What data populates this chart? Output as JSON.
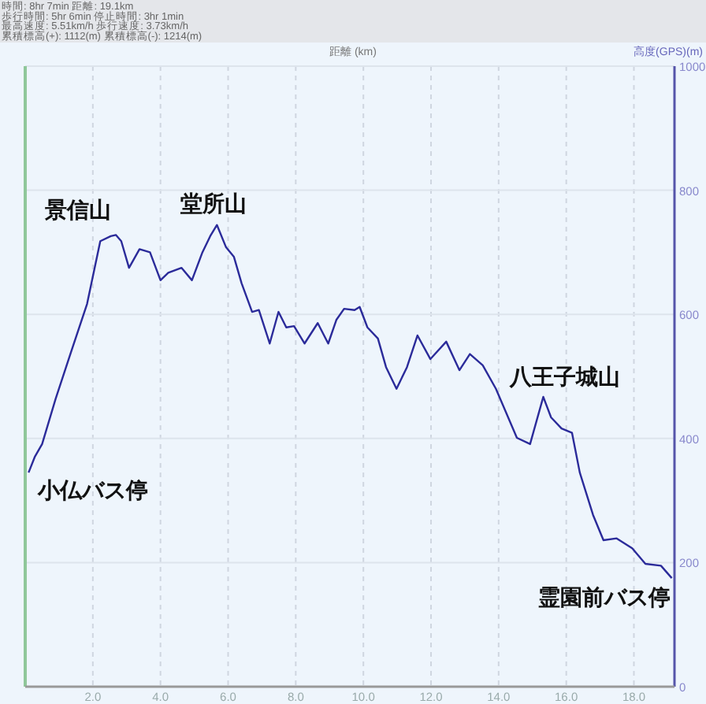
{
  "chart_data": {
    "type": "line",
    "xlabel": "距離 (km)",
    "ylabel": "高度(GPS)(m)",
    "x": [
      0.1,
      0.28,
      0.5,
      0.9,
      1.36,
      1.83,
      2.22,
      2.53,
      2.68,
      2.84,
      3.07,
      3.38,
      3.69,
      4.0,
      4.23,
      4.62,
      4.93,
      5.24,
      5.47,
      5.67,
      5.94,
      6.17,
      6.4,
      6.71,
      6.91,
      7.23,
      7.49,
      7.72,
      7.95,
      8.26,
      8.65,
      8.96,
      9.2,
      9.43,
      9.74,
      9.89,
      10.12,
      10.43,
      10.67,
      10.98,
      11.29,
      11.6,
      11.98,
      12.45,
      12.84,
      13.15,
      13.53,
      13.92,
      14.54,
      14.93,
      15.32,
      15.55,
      15.86,
      16.17,
      16.4,
      16.79,
      17.1,
      17.49,
      17.95,
      18.34,
      18.8,
      19.12
    ],
    "series": [
      {
        "color": "#2b2b9a",
        "values": [
          345,
          370,
          391,
          464,
          540,
          617,
          718,
          726,
          728,
          718,
          675,
          705,
          700,
          655,
          667,
          675,
          655,
          700,
          726,
          744,
          708,
          693,
          650,
          604,
          607,
          553,
          604,
          579,
          581,
          553,
          586,
          553,
          591,
          609,
          607,
          612,
          579,
          561,
          515,
          480,
          515,
          566,
          528,
          556,
          510,
          536,
          518,
          480,
          401,
          391,
          467,
          434,
          416,
          409,
          345,
          277,
          236,
          239,
          223,
          198,
          195,
          175
        ]
      }
    ],
    "xlim": [
      0,
      19.2
    ],
    "xticks": [
      {
        "value": 2,
        "label": "2.0"
      },
      {
        "value": 4,
        "label": "4.0"
      },
      {
        "value": 6,
        "label": "6.0"
      },
      {
        "value": 8,
        "label": "8.0"
      },
      {
        "value": 10,
        "label": "10.0"
      },
      {
        "value": 12,
        "label": "12.0"
      },
      {
        "value": 14,
        "label": "14.0"
      },
      {
        "value": 16,
        "label": "16.0"
      },
      {
        "value": 18,
        "label": "18.0"
      }
    ],
    "ylim": [
      0,
      1000
    ],
    "yticks": [
      0,
      200,
      400,
      600,
      800,
      1000
    ],
    "grid": true,
    "marker": "none",
    "line_style": "solid",
    "annotations": [
      "時間: 8hr 7min 距離: 19.1km",
      "歩行時間: 5hr 6min 停止時間: 3hr 1min",
      "最高速度: 5.51km/h 歩行速度: 3.73km/h",
      "累積標高(+): 1112(m) 累積標高(-): 1214(m)",
      {
        "text": "景信山",
        "x": 2.68,
        "y": 728
      },
      {
        "text": "堂所山",
        "x": 5.67,
        "y": 744
      },
      {
        "text": "八王子城山",
        "x": 15.32,
        "y": 467
      },
      {
        "text": "小仏バス停",
        "x": 0.1,
        "y": 345
      },
      {
        "text": "霊園前バス停",
        "x": 19.12,
        "y": 175
      }
    ]
  }
}
